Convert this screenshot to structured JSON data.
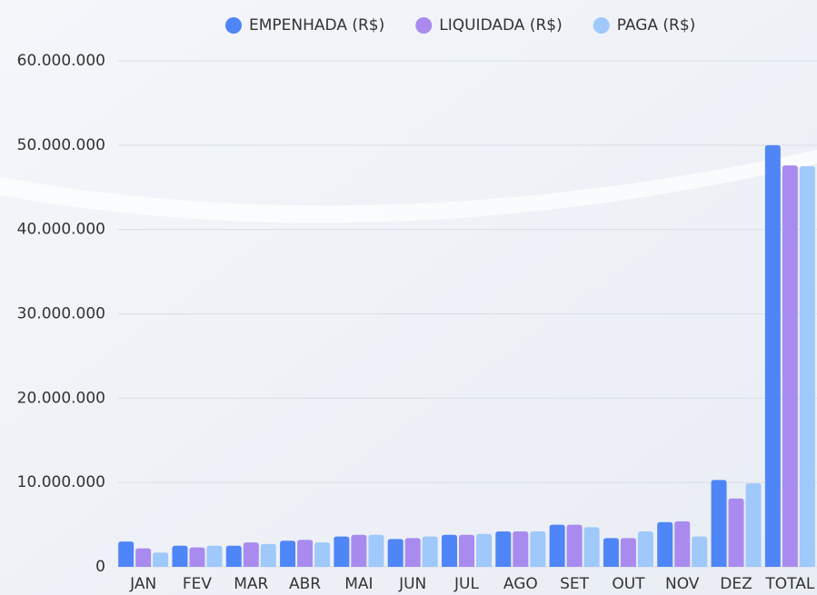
{
  "chart_data": {
    "type": "bar",
    "categories": [
      "JAN",
      "FEV",
      "MAR",
      "ABR",
      "MAI",
      "JUN",
      "JUL",
      "AGO",
      "SET",
      "OUT",
      "NOV",
      "DEZ",
      "TOTAL"
    ],
    "series": [
      {
        "name": "EMPENHADA (R$)",
        "color": "#4f86f7",
        "values": [
          3000000,
          2500000,
          2500000,
          3100000,
          3600000,
          3300000,
          3800000,
          4200000,
          5000000,
          3400000,
          5300000,
          10300000,
          50000000
        ]
      },
      {
        "name": "LIQUIDADA (R$)",
        "color": "#a98bf0",
        "values": [
          2200000,
          2300000,
          2900000,
          3200000,
          3800000,
          3400000,
          3800000,
          4200000,
          5000000,
          3400000,
          5400000,
          8100000,
          47600000
        ]
      },
      {
        "name": "PAGA (R$)",
        "color": "#9fc8fb",
        "values": [
          1700000,
          2500000,
          2700000,
          2900000,
          3800000,
          3600000,
          3900000,
          4200000,
          4700000,
          4200000,
          3600000,
          9900000,
          47500000
        ]
      }
    ],
    "ylim": [
      0,
      60000000
    ],
    "yticks": [
      0,
      {
        "value": 10000000,
        "label": "10.000.000"
      },
      {
        "value": 20000000,
        "label": "20.000.000"
      },
      {
        "value": 30000000,
        "label": "30.000.000"
      },
      {
        "value": 40000000,
        "label": "40.000.000"
      },
      {
        "value": 50000000,
        "label": "50.000.000"
      },
      {
        "value": 60000000,
        "label": "60.000.000"
      }
    ],
    "grid": true,
    "legend": "top"
  }
}
